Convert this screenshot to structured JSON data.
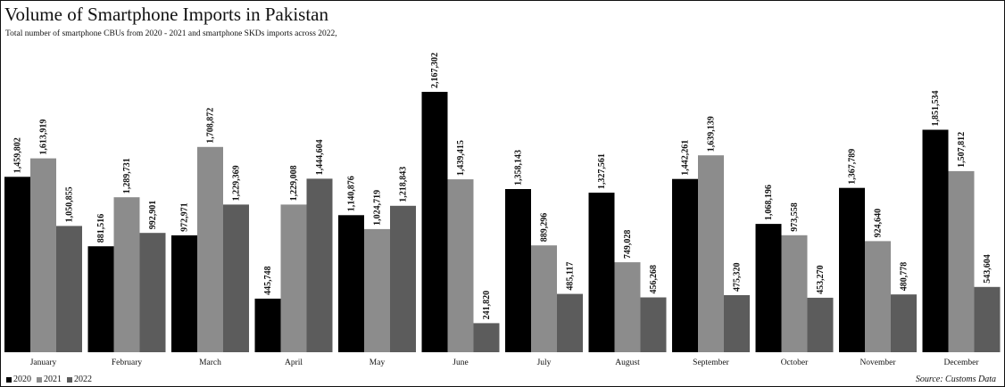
{
  "title": "Volume of Smartphone Imports in Pakistan",
  "subtitle": "Total number of smartphone CBUs from 2020 - 2021 and smartphone SKDs imports across 2022,",
  "source": "Source: Customs Data",
  "colors": {
    "2020": "#000000",
    "2021": "#8c8c8c",
    "2022": "#5c5c5c"
  },
  "chart_data": {
    "type": "bar",
    "categories": [
      "January",
      "February",
      "March",
      "April",
      "May",
      "June",
      "July",
      "August",
      "September",
      "October",
      "November",
      "December"
    ],
    "series": [
      {
        "name": "2020",
        "values": [
          1459802,
          881516,
          972971,
          445748,
          1140876,
          2167302,
          1358143,
          1327561,
          1442261,
          1068196,
          1367789,
          1851534
        ],
        "labels": [
          "1,459,802",
          "881,516",
          "972,971",
          "445,748",
          "1,140,876",
          "2,167,302",
          "1,358,143",
          "1,327,561",
          "1,442,261",
          "1,068,196",
          "1,367,789",
          "1,851,534"
        ]
      },
      {
        "name": "2021",
        "values": [
          1613919,
          1289731,
          1708872,
          1229008,
          1024719,
          1439415,
          889296,
          749028,
          1639139,
          973558,
          924640,
          1507812
        ],
        "labels": [
          "1,613,919",
          "1,289,731",
          "1,708,872",
          "1,229,008",
          "1,024,719",
          "1,439,415",
          "889,296",
          "749,028",
          "1,639,139",
          "973,558",
          "924,640",
          "1,507,812"
        ]
      },
      {
        "name": "2022",
        "values": [
          1050855,
          992901,
          1229369,
          1444604,
          1218843,
          241820,
          485117,
          456268,
          475320,
          453270,
          480778,
          543604
        ],
        "labels": [
          "1,050,855",
          "992,901",
          "1,229,369",
          "1,444,604",
          "1,218,843",
          "241,820",
          "485,117",
          "456,268",
          "475,320",
          "453,270",
          "480,778",
          "543,604"
        ]
      }
    ]
  }
}
